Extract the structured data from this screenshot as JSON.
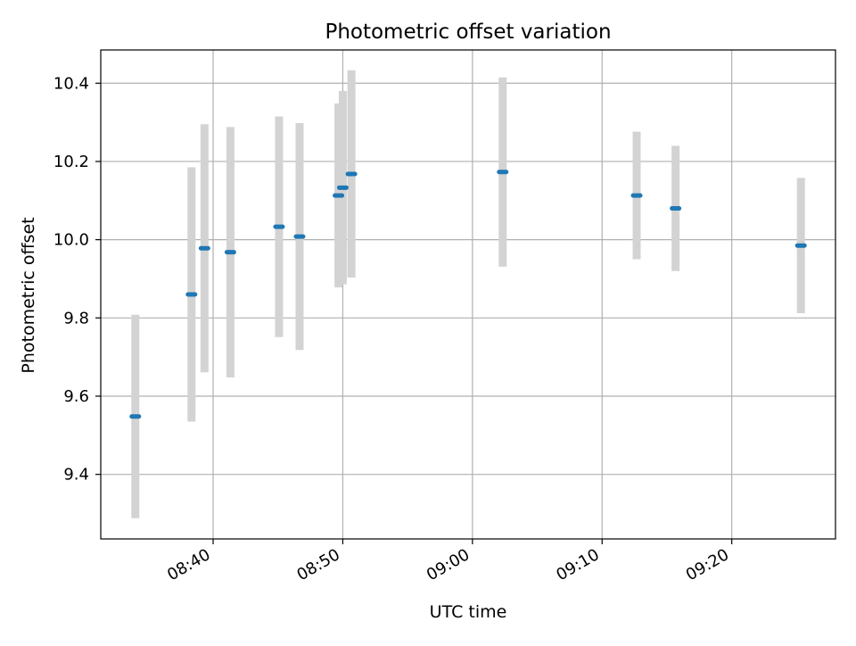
{
  "chart_data": {
    "type": "scatter",
    "title": "Photometric offset variation",
    "xlabel": "UTC time",
    "ylabel": "Photometric offset",
    "x_axis_kind": "time",
    "xlim": [
      "08:31:20",
      "09:28:00"
    ],
    "ylim": [
      9.235,
      10.485
    ],
    "xticks": [
      "08:40",
      "08:50",
      "09:00",
      "09:10",
      "09:20"
    ],
    "yticks": [
      9.4,
      9.6,
      9.8,
      10.0,
      10.2,
      10.4
    ],
    "ytick_labels": [
      "9.4",
      "9.6",
      "9.8",
      "10.0",
      "10.2",
      "10.4"
    ],
    "grid": true,
    "legend": "none",
    "series": [
      {
        "points": [
          {
            "t": "08:34:00",
            "y": 9.548,
            "err": 0.26
          },
          {
            "t": "08:38:20",
            "y": 9.86,
            "err": 0.325
          },
          {
            "t": "08:39:20",
            "y": 9.978,
            "err": 0.317
          },
          {
            "t": "08:41:20",
            "y": 9.968,
            "err": 0.32
          },
          {
            "t": "08:45:05",
            "y": 10.033,
            "err": 0.282
          },
          {
            "t": "08:46:40",
            "y": 10.008,
            "err": 0.29
          },
          {
            "t": "08:49:40",
            "y": 10.113,
            "err": 0.235
          },
          {
            "t": "08:50:00",
            "y": 10.133,
            "err": 0.247
          },
          {
            "t": "08:50:40",
            "y": 10.168,
            "err": 0.265
          },
          {
            "t": "09:02:20",
            "y": 10.173,
            "err": 0.242
          },
          {
            "t": "09:12:40",
            "y": 10.113,
            "err": 0.163
          },
          {
            "t": "09:15:40",
            "y": 10.08,
            "err": 0.16
          },
          {
            "t": "09:25:20",
            "y": 9.985,
            "err": 0.173
          }
        ]
      }
    ],
    "colors": {
      "marker": "#1f77b4",
      "errorbar": "#d3d3d3",
      "grid": "#b0b0b0",
      "axes": "#000000"
    }
  }
}
